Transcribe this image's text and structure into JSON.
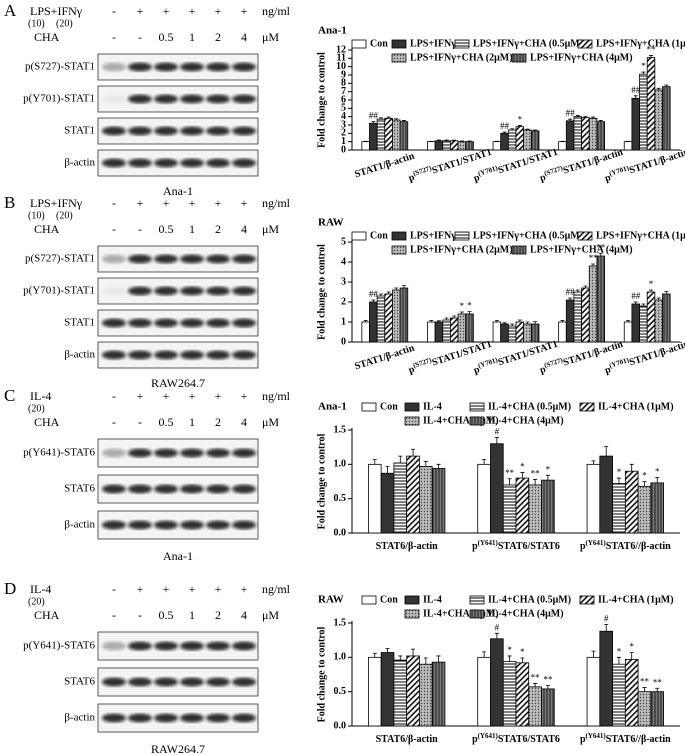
{
  "panel_letters": [
    "A",
    "B",
    "C",
    "D"
  ],
  "blots": [
    {
      "rows": [
        {
          "label": "LPS+IFNγ",
          "sub": [
            "(10)",
            "(20)"
          ],
          "lanes": [
            "-",
            "+",
            "+",
            "+",
            "+",
            "+"
          ],
          "unit": "ng/ml"
        },
        {
          "label": "CHA",
          "lanes": [
            "-",
            "-",
            "0.5",
            "1",
            "2",
            "4"
          ],
          "unit": "μM"
        }
      ],
      "proteins": [
        "p(S727)-STAT1",
        "p(Y701)-STAT1",
        "STAT1",
        "β-actin"
      ],
      "cell": "Ana-1"
    },
    {
      "rows": [
        {
          "label": "LPS+IFNγ",
          "sub": [
            "(10)",
            "(20)"
          ],
          "lanes": [
            "-",
            "+",
            "+",
            "+",
            "+",
            "+"
          ],
          "unit": "ng/ml"
        },
        {
          "label": "CHA",
          "lanes": [
            "-",
            "-",
            "0.5",
            "1",
            "2",
            "4"
          ],
          "unit": "μM"
        }
      ],
      "proteins": [
        "p(S727)-STAT1",
        "p(Y701)-STAT1",
        "STAT1",
        "β-actin"
      ],
      "cell": "RAW264.7"
    },
    {
      "rows": [
        {
          "label": "IL-4",
          "sub": [
            "(20)"
          ],
          "lanes": [
            "-",
            "+",
            "+",
            "+",
            "+",
            "+"
          ],
          "unit": "ng/ml"
        },
        {
          "label": "CHA",
          "lanes": [
            "-",
            "-",
            "0.5",
            "1",
            "2",
            "4"
          ],
          "unit": "μM"
        }
      ],
      "proteins": [
        "p(Y641)-STAT6",
        "STAT6",
        "β-actin"
      ],
      "cell": "Ana-1"
    },
    {
      "rows": [
        {
          "label": "IL-4",
          "sub": [
            "(20)"
          ],
          "lanes": [
            "-",
            "+",
            "+",
            "+",
            "+",
            "+"
          ],
          "unit": "ng/ml"
        },
        {
          "label": "CHA",
          "lanes": [
            "-",
            "-",
            "0.5",
            "1",
            "2",
            "4"
          ],
          "unit": "μM"
        }
      ],
      "proteins": [
        "p(Y641)-STAT6",
        "STAT6",
        "β-actin"
      ],
      "cell": "RAW264.7"
    }
  ],
  "chart_data": [
    {
      "type": "bar",
      "title": "Ana-1",
      "y_label": "Fold change to control",
      "rotate_labels": true,
      "categories": [
        [
          "STAT1/β-actin"
        ],
        [
          "p",
          "(S727)",
          "STAT1/STAT1"
        ],
        [
          "p",
          "(Y701)",
          "STAT1/STAT1"
        ],
        [
          "p",
          "(S727)",
          "STAT1/β-actin"
        ],
        [
          "p",
          "(Y701)",
          "STAT1/β-actin"
        ]
      ],
      "ylim": [
        0,
        12
      ],
      "yticks": [
        0,
        1,
        2,
        3,
        4,
        5,
        6,
        7,
        8,
        9,
        10,
        11,
        12
      ],
      "series": [
        {
          "name": "Con",
          "color": "#000000",
          "pattern": "white",
          "values": [
            1,
            1,
            1,
            1,
            1
          ],
          "errors": [
            0.05,
            0.05,
            0.05,
            0.05,
            0.05
          ]
        },
        {
          "name": "LPS+IFNγ",
          "color": "#000000",
          "pattern": "solid",
          "values": [
            3.2,
            1.1,
            2.0,
            3.5,
            6.2
          ],
          "errors": [
            0.2,
            0.1,
            0.15,
            0.2,
            0.3
          ],
          "annotations": [
            "##",
            null,
            "##",
            "##",
            "##"
          ]
        },
        {
          "name": "LPS+IFNγ+CHA (0.5μM)",
          "color": "#000000",
          "pattern": "hlines",
          "values": [
            3.7,
            1.1,
            2.4,
            4.0,
            9.1
          ],
          "errors": [
            0.15,
            0.1,
            0.15,
            0.15,
            0.25
          ],
          "annotations": [
            null,
            null,
            null,
            null,
            "*"
          ]
        },
        {
          "name": "LPS+IFNγ+CHA (1μM)",
          "color": "#000000",
          "pattern": "dlines",
          "values": [
            3.8,
            1.1,
            2.8,
            3.9,
            11.1
          ],
          "errors": [
            0.15,
            0.08,
            0.15,
            0.15,
            0.25
          ],
          "annotations": [
            null,
            null,
            "*",
            null,
            "**"
          ]
        },
        {
          "name": "LPS+IFNγ+CHA (2μM)",
          "color": "#000000",
          "pattern": "cross",
          "values": [
            3.6,
            1.0,
            2.4,
            3.8,
            7.2
          ],
          "errors": [
            0.15,
            0.08,
            0.1,
            0.15,
            0.2
          ]
        },
        {
          "name": "LPS+IFNγ+CHA (4μM)",
          "color": "#000000",
          "pattern": "vlines",
          "values": [
            3.4,
            1.0,
            2.3,
            3.4,
            7.6
          ],
          "errors": [
            0.15,
            0.08,
            0.1,
            0.15,
            0.2
          ]
        }
      ]
    },
    {
      "type": "bar",
      "title": "RAW",
      "y_label": "Fold change to control",
      "rotate_labels": true,
      "categories": [
        [
          "STAT1/β-actin"
        ],
        [
          "p",
          "(S727)",
          "STAT1/STAT1"
        ],
        [
          "p",
          "(Y701)",
          "STAT1/STAT1"
        ],
        [
          "p",
          "(S727)",
          "STAT1/β-actin"
        ],
        [
          "p",
          "(Y701)",
          "STAT1/β-actin"
        ]
      ],
      "ylim": [
        0,
        5
      ],
      "yticks": [
        0,
        1,
        2,
        3,
        4,
        5
      ],
      "series": [
        {
          "name": "Con",
          "color": "#000000",
          "pattern": "white",
          "values": [
            1,
            1,
            1,
            1,
            1
          ],
          "errors": [
            0.08,
            0.08,
            0.08,
            0.08,
            0.08
          ]
        },
        {
          "name": "LPS+IFNγ",
          "color": "#000000",
          "pattern": "solid",
          "values": [
            2.0,
            1.0,
            0.9,
            2.1,
            1.9
          ],
          "errors": [
            0.1,
            0.06,
            0.06,
            0.1,
            0.1
          ],
          "annotations": [
            "##",
            null,
            null,
            "##",
            "##"
          ]
        },
        {
          "name": "LPS+IFNγ+CHA (0.5μM)",
          "color": "#000000",
          "pattern": "hlines",
          "values": [
            2.3,
            1.1,
            0.8,
            2.5,
            1.8
          ],
          "errors": [
            0.1,
            0.1,
            0.1,
            0.1,
            0.1
          ]
        },
        {
          "name": "LPS+IFNγ+CHA (1μM)",
          "color": "#000000",
          "pattern": "dlines",
          "values": [
            2.4,
            1.2,
            1.0,
            2.7,
            2.5
          ],
          "errors": [
            0.1,
            0.1,
            0.1,
            0.1,
            0.1
          ],
          "annotations": [
            null,
            null,
            null,
            null,
            "*"
          ]
        },
        {
          "name": "LPS+IFNγ+CHA (2μM)",
          "color": "#000000",
          "pattern": "cross",
          "values": [
            2.6,
            1.4,
            0.9,
            3.8,
            2.1
          ],
          "errors": [
            0.1,
            0.1,
            0.1,
            0.1,
            0.1
          ],
          "annotations": [
            null,
            "*",
            null,
            "**",
            null
          ]
        },
        {
          "name": "LPS+IFNγ+CHA (4μM)",
          "color": "#000000",
          "pattern": "vlines",
          "values": [
            2.7,
            1.4,
            0.9,
            4.3,
            2.4
          ],
          "errors": [
            0.12,
            0.12,
            0.12,
            0.12,
            0.12
          ],
          "annotations": [
            null,
            "*",
            null,
            "**",
            null
          ]
        }
      ]
    },
    {
      "type": "bar",
      "title": "Ana-1",
      "y_label": "Fold change to control",
      "rotate_labels": false,
      "categories": [
        [
          "STAT6/β-actin"
        ],
        [
          "p",
          "(Y641)",
          "STAT6/STAT6"
        ],
        [
          "p",
          "(Y641)",
          "STAT6//β-actin"
        ]
      ],
      "ylim": [
        0,
        1.5
      ],
      "yticks": [
        {
          "value": 0,
          "label": "0.0"
        },
        0.5,
        {
          "value": 1,
          "label": "1.0"
        },
        1.5
      ],
      "series": [
        {
          "name": "Con",
          "color": "#000000",
          "pattern": "white",
          "values": [
            1.0,
            1.0,
            1.0
          ],
          "errors": [
            0.07,
            0.07,
            0.05
          ]
        },
        {
          "name": "IL-4",
          "color": "#000000",
          "pattern": "solid",
          "values": [
            0.87,
            1.3,
            1.12
          ],
          "errors": [
            0.1,
            0.09,
            0.14
          ],
          "annotations": [
            null,
            "#",
            null
          ]
        },
        {
          "name": "IL-4+CHA (0.5μM)",
          "color": "#000000",
          "pattern": "hlines",
          "values": [
            1.02,
            0.7,
            0.72
          ],
          "errors": [
            0.1,
            0.09,
            0.08
          ],
          "annotations": [
            null,
            "**",
            "*"
          ]
        },
        {
          "name": "IL-4+CHA (1μM)",
          "color": "#000000",
          "pattern": "dlines",
          "values": [
            1.12,
            0.8,
            0.9
          ],
          "errors": [
            0.1,
            0.08,
            0.1
          ],
          "annotations": [
            null,
            "*",
            null
          ]
        },
        {
          "name": "IL-4+CHA (2μM)",
          "color": "#000000",
          "pattern": "cross",
          "values": [
            0.97,
            0.7,
            0.68
          ],
          "errors": [
            0.07,
            0.08,
            0.07
          ],
          "annotations": [
            null,
            "**",
            "*"
          ]
        },
        {
          "name": "IL-4+CHA (4μM)",
          "color": "#000000",
          "pattern": "vlines",
          "values": [
            0.94,
            0.77,
            0.73
          ],
          "errors": [
            0.06,
            0.07,
            0.08
          ],
          "annotations": [
            null,
            "*",
            "*"
          ]
        }
      ]
    },
    {
      "type": "bar",
      "title": "RAW",
      "y_label": "Fold change to control",
      "rotate_labels": false,
      "categories": [
        [
          "STAT6/β-actin"
        ],
        [
          "p",
          "(Y641)",
          "STAT6/STAT6"
        ],
        [
          "p",
          "(Y641)",
          "STAT6//β-actin"
        ]
      ],
      "ylim": [
        0,
        1.5
      ],
      "yticks": [
        {
          "value": 0,
          "label": "0.0"
        },
        0.5,
        {
          "value": 1,
          "label": "1.0"
        },
        1.5
      ],
      "series": [
        {
          "name": "Con",
          "color": "#000000",
          "pattern": "white",
          "values": [
            1.0,
            1.0,
            1.0
          ],
          "errors": [
            0.06,
            0.08,
            0.09
          ]
        },
        {
          "name": "IL-4",
          "color": "#000000",
          "pattern": "solid",
          "values": [
            1.07,
            1.27,
            1.38
          ],
          "errors": [
            0.06,
            0.08,
            0.1
          ],
          "annotations": [
            null,
            "#",
            "#"
          ]
        },
        {
          "name": "IL-4+CHA (0.5μM)",
          "color": "#000000",
          "pattern": "hlines",
          "values": [
            0.96,
            0.94,
            0.9
          ],
          "errors": [
            0.06,
            0.08,
            0.1
          ],
          "annotations": [
            null,
            "*",
            "*"
          ]
        },
        {
          "name": "IL-4+CHA (1μM)",
          "color": "#000000",
          "pattern": "dlines",
          "values": [
            1.02,
            0.92,
            0.97
          ],
          "errors": [
            0.1,
            0.07,
            0.1
          ],
          "annotations": [
            null,
            "*",
            "*"
          ]
        },
        {
          "name": "IL-4+CHA (2μM)",
          "color": "#000000",
          "pattern": "cross",
          "values": [
            0.9,
            0.57,
            0.5
          ],
          "errors": [
            0.09,
            0.05,
            0.06
          ],
          "annotations": [
            null,
            "**",
            "**"
          ]
        },
        {
          "name": "IL-4+CHA (4μM)",
          "color": "#000000",
          "pattern": "vlines",
          "values": [
            0.93,
            0.54,
            0.5
          ],
          "errors": [
            0.09,
            0.05,
            0.05
          ],
          "annotations": [
            null,
            "**",
            "**"
          ]
        }
      ]
    }
  ]
}
